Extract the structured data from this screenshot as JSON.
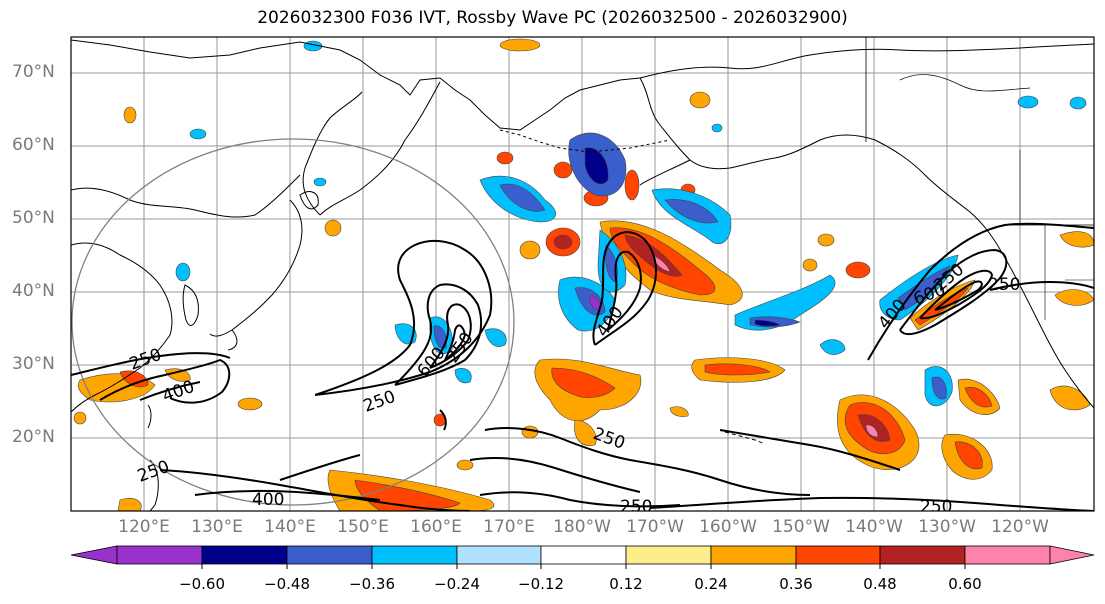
{
  "title": "2026032300 F036 IVT, Rossby Wave PC (2026032500 - 2026032900)",
  "lat_labels": [
    "70°N",
    "60°N",
    "50°N",
    "40°N",
    "30°N",
    "20°N"
  ],
  "lon_labels": [
    "120°E",
    "130°E",
    "140°E",
    "150°E",
    "160°E",
    "170°E",
    "180°W",
    "170°W",
    "160°W",
    "150°W",
    "140°W",
    "130°W",
    "120°W"
  ],
  "contour_labels": [
    "250",
    "400",
    "250",
    "600",
    "250",
    "400",
    "250",
    "250",
    "600",
    "400",
    "250",
    "250",
    "250",
    "250",
    "400"
  ],
  "colorbar": {
    "ticks": [
      "−0.60",
      "−0.48",
      "−0.36",
      "−0.24",
      "−0.12",
      "0.12",
      "0.24",
      "0.36",
      "0.48",
      "0.60"
    ],
    "colors": [
      "#9932cc",
      "#00008b",
      "#3a5fcd",
      "#00bfff",
      "#b0e2ff",
      "#ffffff",
      "#ffec8b",
      "#ffa500",
      "#ff4500",
      "#b22222",
      "#ff82ab"
    ]
  }
}
